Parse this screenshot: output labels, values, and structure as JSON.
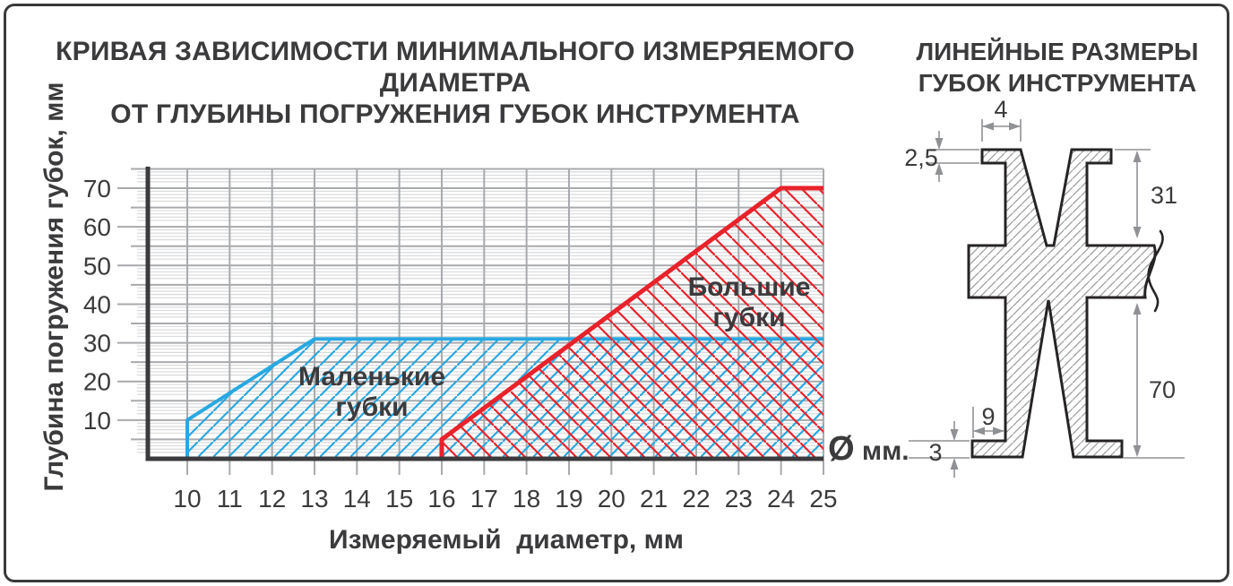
{
  "accent_colors": {
    "blue": "#29a8e0",
    "red": "#e8222b",
    "grid_major": "#a8aaad",
    "grid_fine": "#d9dadb",
    "axis_dark": "#3a3a3c",
    "text_dark": "#3b3b3d",
    "dim_gray": "#8f9194",
    "hatch_gray": "#9c9ea0",
    "outline_black": "#272425"
  },
  "titles": {
    "main_line1": "КРИВАЯ ЗАВИСИМОСТИ МИНИМАЛЬНОГО ИЗМЕРЯЕМОГО ДИАМЕТРА",
    "main_line2": "ОТ ГЛУБИНЫ ПОГРУЖЕНИЯ ГУБОК ИНСТРУМЕНТА",
    "right_line1": "ЛИНЕЙНЫЕ РАЗМЕРЫ",
    "right_line2": "ГУБОК ИНСТРУМЕНТА"
  },
  "chart_data": {
    "type": "area",
    "title": "КРИВАЯ ЗАВИСИМОСТИ МИНИМАЛЬНОГО ИЗМЕРЯЕМОГО ДИАМЕТРА ОТ ГЛУБИНЫ ПОГРУЖЕНИЯ ГУБОК ИНСТРУМЕНТА",
    "xlabel": "Измеряемый  диаметр, мм",
    "ylabel": "Глубина  погружения  губок, мм",
    "x_unit_suffix": "Ø мм.",
    "xlim": [
      10,
      25
    ],
    "ylim": [
      0,
      75
    ],
    "x_ticks": [
      "10",
      "11",
      "12",
      "13",
      "14",
      "15",
      "16",
      "17",
      "18",
      "19",
      "20",
      "21",
      "22",
      "23",
      "24",
      "25"
    ],
    "y_ticks": [
      "10",
      "20",
      "30",
      "40",
      "50",
      "60",
      "70"
    ],
    "y_minor_step": 5,
    "grid": true,
    "legend_position": "labels-inside-areas",
    "series": [
      {
        "name": "Маленькие губки",
        "label_lines": [
          "Маленькие",
          "губки"
        ],
        "color": "#29a8e0",
        "hatch": "/",
        "points": [
          [
            10,
            0
          ],
          [
            10,
            10
          ],
          [
            13,
            31
          ],
          [
            25,
            31
          ]
        ],
        "meaning": "min measurable diameter vs immersion depth, small jaws (max depth 31 mm)"
      },
      {
        "name": "Большие губки",
        "label_lines": [
          "Большие",
          "губки"
        ],
        "color": "#e8222b",
        "hatch": "\\",
        "points": [
          [
            16,
            0
          ],
          [
            16,
            5
          ],
          [
            24,
            70
          ],
          [
            25,
            70
          ]
        ],
        "meaning": "min measurable diameter vs immersion depth, large jaws (max depth 70 mm)"
      }
    ]
  },
  "drawing": {
    "caption": "ЛИНЕЙНЫЕ РАЗМЕРЫ ГУБОК ИНСТРУМЕНТА",
    "dimensions": {
      "top_jaw_width": "4",
      "top_flange_thickness": "2,5",
      "small_jaw_depth": "31",
      "bottom_step_width": "9",
      "bottom_flange_thickness": "3",
      "large_jaw_depth": "70"
    }
  }
}
